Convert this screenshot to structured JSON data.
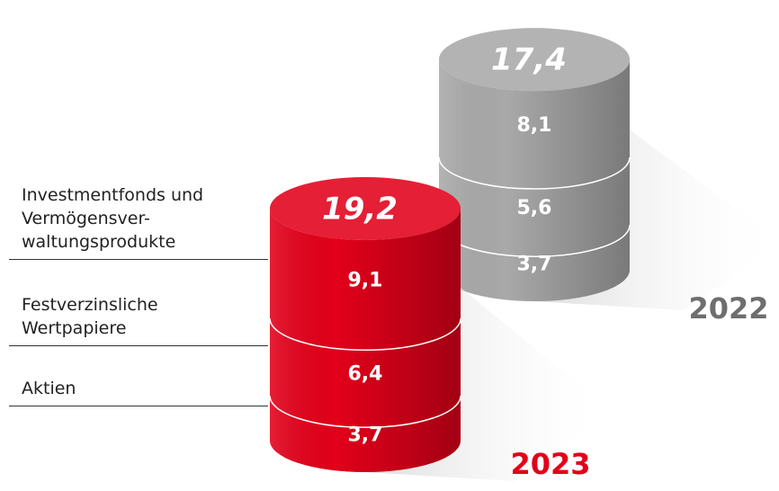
{
  "chart_data": {
    "type": "stacked-cylinder",
    "categories": [
      "2023",
      "2022"
    ],
    "colors": [
      "#e2001a",
      "#a9a9a9"
    ],
    "series": [
      {
        "name": "Aktien",
        "values": [
          3.7,
          3.7
        ],
        "value_labels": [
          "3,7",
          "3,7"
        ]
      },
      {
        "name": "Festverzinsliche\nWertpapiere",
        "values": [
          6.4,
          5.6
        ],
        "value_labels": [
          "6,4",
          "5,6"
        ]
      },
      {
        "name": "Investmentfonds und\nVermögensver-\nwaltungsprodukte",
        "values": [
          9.1,
          8.1
        ],
        "value_labels": [
          "9,1",
          "8,1"
        ]
      }
    ],
    "totals": [
      19.2,
      17.4
    ],
    "total_labels": [
      "19,2",
      "17,4"
    ]
  }
}
